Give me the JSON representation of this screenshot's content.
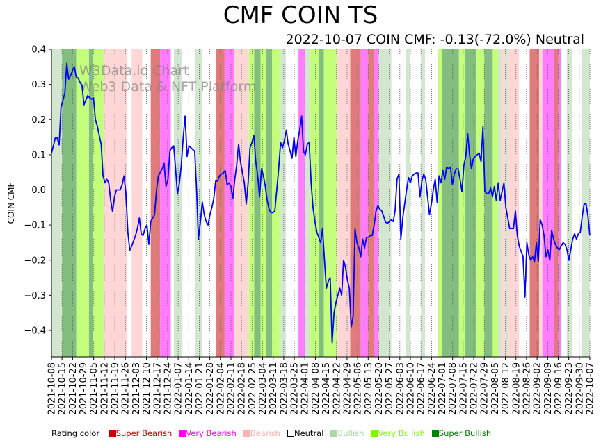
{
  "chart_data": {
    "type": "line",
    "title": "CMF COIN TS",
    "subtitle": "2022-10-07 COIN CMF: -0.13(-72.0%) Neutral",
    "ylabel": "COIN CMF",
    "xlabel": "",
    "ylim": [
      -0.475,
      0.4
    ],
    "yticks": [
      -0.4,
      -0.3,
      -0.2,
      -0.1,
      0.0,
      0.1,
      0.2,
      0.3,
      0.4
    ],
    "ytick_labels": [
      "−0.4",
      "−0.3",
      "−0.2",
      "−0.1",
      "0.0",
      "0.1",
      "0.2",
      "0.3",
      "0.4"
    ],
    "watermark": [
      "W3Data.io Chart",
      "Web3 Data & NFT Platform"
    ],
    "xticks": [
      "2021-10-08",
      "2021-10-15",
      "2021-10-22",
      "2021-10-29",
      "2021-11-05",
      "2021-11-12",
      "2021-11-19",
      "2021-11-26",
      "2021-12-03",
      "2021-12-10",
      "2021-12-17",
      "2021-12-24",
      "2022-01-07",
      "2022-01-14",
      "2022-01-21",
      "2022-01-28",
      "2022-02-04",
      "2022-02-11",
      "2022-02-18",
      "2022-02-25",
      "2022-03-04",
      "2022-03-11",
      "2022-03-18",
      "2022-03-25",
      "2022-04-01",
      "2022-04-08",
      "2022-04-15",
      "2022-04-22",
      "2022-04-29",
      "2022-05-06",
      "2022-05-13",
      "2022-05-20",
      "2022-05-27",
      "2022-06-03",
      "2022-06-10",
      "2022-06-17",
      "2022-06-24",
      "2022-07-01",
      "2022-07-08",
      "2022-07-15",
      "2022-07-22",
      "2022-07-29",
      "2022-08-05",
      "2022-08-12",
      "2022-08-19",
      "2022-08-26",
      "2022-09-02",
      "2022-09-09",
      "2022-09-16",
      "2022-09-23",
      "2022-09-30",
      "2022-10-07"
    ],
    "series": [
      {
        "name": "COIN CMF",
        "color": "#0000ff",
        "values": [
          0.105,
          0.125,
          0.148,
          0.148,
          0.128,
          0.235,
          0.255,
          0.275,
          0.36,
          0.315,
          0.325,
          0.34,
          0.35,
          0.32,
          0.318,
          0.305,
          0.298,
          0.242,
          0.255,
          0.268,
          0.262,
          0.258,
          0.262,
          0.2,
          0.182,
          0.155,
          0.13,
          0.04,
          0.02,
          0.03,
          0.02,
          -0.03,
          -0.062,
          -0.02,
          0.0,
          0.0,
          0.0,
          0.015,
          0.04,
          -0.01,
          -0.12,
          -0.172,
          -0.16,
          -0.145,
          -0.13,
          -0.11,
          -0.08,
          -0.125,
          -0.13,
          -0.11,
          -0.1,
          -0.155,
          -0.09,
          -0.08,
          -0.07,
          0.0,
          0.04,
          0.05,
          0.06,
          0.075,
          0.01,
          0.03,
          0.11,
          0.12,
          0.125,
          0.06,
          -0.012,
          0.02,
          0.07,
          0.15,
          0.21,
          0.095,
          0.125,
          0.12,
          0.115,
          0.11,
          0.0,
          -0.14,
          -0.09,
          -0.035,
          -0.07,
          -0.09,
          -0.1,
          -0.07,
          -0.05,
          -0.025,
          0.025,
          0.025,
          0.04,
          0.045,
          0.048,
          0.055,
          0.015,
          0.02,
          0.01,
          -0.025,
          0.03,
          0.07,
          0.13,
          0.08,
          0.05,
          0.02,
          -0.04,
          0.02,
          0.12,
          0.135,
          0.155,
          0.08,
          0.04,
          -0.02,
          0.06,
          0.04,
          0.01,
          -0.03,
          -0.055,
          -0.065,
          -0.065,
          -0.06,
          0.0,
          0.06,
          0.135,
          0.12,
          0.14,
          0.17,
          0.13,
          0.11,
          0.09,
          0.15,
          0.095,
          0.14,
          0.17,
          0.21,
          0.11,
          0.1,
          0.13,
          0.135,
          0.02,
          -0.05,
          -0.09,
          -0.12,
          -0.135,
          -0.15,
          -0.11,
          -0.2,
          -0.28,
          -0.26,
          -0.25,
          -0.435,
          -0.35,
          -0.32,
          -0.3,
          -0.28,
          -0.3,
          -0.2,
          -0.22,
          -0.255,
          -0.28,
          -0.39,
          -0.36,
          -0.11,
          -0.15,
          -0.165,
          -0.19,
          -0.14,
          -0.165,
          -0.135,
          -0.135,
          -0.13,
          -0.13,
          -0.1,
          -0.06,
          -0.045,
          -0.055,
          -0.06,
          -0.075,
          -0.092,
          -0.095,
          -0.09,
          -0.085,
          -0.09,
          -0.06,
          0.03,
          0.045,
          -0.14,
          -0.08,
          -0.04,
          0.0,
          0.035,
          0.02,
          0.04,
          0.045,
          0.048,
          0.048,
          -0.02,
          0.025,
          0.045,
          0.03,
          -0.02,
          -0.07,
          -0.04,
          0.0,
          0.03,
          -0.035,
          0.04,
          0.02,
          0.055,
          0.03,
          0.065,
          0.06,
          0.065,
          0.015,
          0.045,
          0.06,
          0.06,
          0.03,
          -0.005,
          0.07,
          0.095,
          0.16,
          0.1,
          0.06,
          0.09,
          0.095,
          0.1,
          0.105,
          0.08,
          0.18,
          -0.005,
          -0.01,
          -0.01,
          0.005,
          -0.02,
          0.01,
          -0.03,
          0.02,
          -0.03,
          -0.005,
          0.02,
          -0.05,
          -0.08,
          -0.11,
          -0.11,
          -0.11,
          -0.06,
          -0.13,
          -0.16,
          -0.175,
          -0.19,
          -0.305,
          -0.15,
          -0.185,
          -0.2,
          -0.19,
          -0.205,
          -0.15,
          -0.205,
          -0.085,
          -0.1,
          -0.13,
          -0.19,
          -0.17,
          -0.2,
          -0.115,
          -0.14,
          -0.155,
          -0.165,
          -0.17,
          -0.16,
          -0.15,
          -0.155,
          -0.17,
          -0.2,
          -0.17,
          -0.14,
          -0.125,
          -0.14,
          -0.125,
          -0.12,
          -0.075,
          -0.04,
          -0.04,
          -0.075,
          -0.13
        ]
      }
    ],
    "rating_bands": [
      {
        "rating": "Bullish",
        "from": 0.0,
        "to": 1.0
      },
      {
        "rating": "Super Bullish",
        "from": 1.0,
        "to": 2.35
      },
      {
        "rating": "Very Bullish",
        "from": 2.35,
        "to": 3.55
      },
      {
        "rating": "Super Bullish",
        "from": 3.55,
        "to": 3.9
      },
      {
        "rating": "Very Bullish",
        "from": 3.9,
        "to": 5.0
      },
      {
        "rating": "Bearish",
        "from": 5.0,
        "to": 7.2
      },
      {
        "rating": "Neutral",
        "from": 7.2,
        "to": 7.6
      },
      {
        "rating": "Bearish",
        "from": 7.6,
        "to": 8.6
      },
      {
        "rating": "Neutral",
        "from": 8.6,
        "to": 9.4
      },
      {
        "rating": "Super Bearish",
        "from": 9.4,
        "to": 10.3
      },
      {
        "rating": "Very Bearish",
        "from": 10.3,
        "to": 11.3
      },
      {
        "rating": "Neutral",
        "from": 11.3,
        "to": 11.6
      },
      {
        "rating": "Bullish",
        "from": 11.6,
        "to": 12.4
      },
      {
        "rating": "Neutral",
        "from": 12.4,
        "to": 13.6
      },
      {
        "rating": "Bullish",
        "from": 13.6,
        "to": 14.3
      },
      {
        "rating": "Neutral",
        "from": 14.3,
        "to": 15.6
      },
      {
        "rating": "Super Bearish",
        "from": 15.6,
        "to": 16.4
      },
      {
        "rating": "Very Bearish",
        "from": 16.4,
        "to": 17.3
      },
      {
        "rating": "Bearish",
        "from": 17.3,
        "to": 18.7
      },
      {
        "rating": "Very Bullish",
        "from": 18.7,
        "to": 19.2
      },
      {
        "rating": "Super Bullish",
        "from": 19.2,
        "to": 19.8
      },
      {
        "rating": "Very Bullish",
        "from": 19.8,
        "to": 20.3
      },
      {
        "rating": "Super Bullish",
        "from": 20.3,
        "to": 20.9
      },
      {
        "rating": "Very Bullish",
        "from": 20.9,
        "to": 21.7
      },
      {
        "rating": "Bullish",
        "from": 21.7,
        "to": 22.2
      },
      {
        "rating": "Neutral",
        "from": 22.2,
        "to": 23.4
      },
      {
        "rating": "Very Bearish",
        "from": 23.4,
        "to": 24.0
      },
      {
        "rating": "Bullish",
        "from": 24.0,
        "to": 24.5
      },
      {
        "rating": "Very Bullish",
        "from": 24.5,
        "to": 25.3
      },
      {
        "rating": "Super Bullish",
        "from": 25.3,
        "to": 25.8
      },
      {
        "rating": "Very Bullish",
        "from": 25.8,
        "to": 27.1
      },
      {
        "rating": "Bearish",
        "from": 27.1,
        "to": 28.3
      },
      {
        "rating": "Super Bearish",
        "from": 28.3,
        "to": 29.3
      },
      {
        "rating": "Very Bearish",
        "from": 29.3,
        "to": 30.0
      },
      {
        "rating": "Super Bearish",
        "from": 30.0,
        "to": 30.6
      },
      {
        "rating": "Very Bearish",
        "from": 30.6,
        "to": 31.0
      },
      {
        "rating": "Bullish",
        "from": 31.0,
        "to": 32.2
      },
      {
        "rating": "Neutral",
        "from": 32.2,
        "to": 33.6
      },
      {
        "rating": "Bullish",
        "from": 33.6,
        "to": 34.0
      },
      {
        "rating": "Neutral",
        "from": 34.0,
        "to": 35.0
      },
      {
        "rating": "Bullish",
        "from": 35.0,
        "to": 35.4
      },
      {
        "rating": "Neutral",
        "from": 35.4,
        "to": 36.6
      },
      {
        "rating": "Very Bullish",
        "from": 36.6,
        "to": 37.0
      },
      {
        "rating": "Super Bullish",
        "from": 37.0,
        "to": 38.6
      },
      {
        "rating": "Very Bullish",
        "from": 38.6,
        "to": 39.2
      },
      {
        "rating": "Super Bullish",
        "from": 39.2,
        "to": 40.2
      },
      {
        "rating": "Very Bullish",
        "from": 40.2,
        "to": 41.0
      },
      {
        "rating": "Super Bullish",
        "from": 41.0,
        "to": 41.8
      },
      {
        "rating": "Very Bullish",
        "from": 41.8,
        "to": 42.3
      },
      {
        "rating": "Bullish",
        "from": 42.3,
        "to": 42.6
      },
      {
        "rating": "Bearish",
        "from": 42.6,
        "to": 43.0
      },
      {
        "rating": "Bullish",
        "from": 43.0,
        "to": 43.3
      },
      {
        "rating": "Bearish",
        "from": 43.3,
        "to": 44.3
      },
      {
        "rating": "Neutral",
        "from": 44.3,
        "to": 45.3
      },
      {
        "rating": "Super Bearish",
        "from": 45.3,
        "to": 46.2
      },
      {
        "rating": "Bearish",
        "from": 46.2,
        "to": 46.5
      },
      {
        "rating": "Very Bearish",
        "from": 46.5,
        "to": 47.6
      },
      {
        "rating": "Super Bearish",
        "from": 47.6,
        "to": 48.0
      },
      {
        "rating": "Very Bearish",
        "from": 48.0,
        "to": 48.3
      },
      {
        "rating": "Neutral",
        "from": 48.3,
        "to": 48.8
      },
      {
        "rating": "Bullish",
        "from": 48.8,
        "to": 49.3
      },
      {
        "rating": "Neutral",
        "from": 49.3,
        "to": 50.2
      },
      {
        "rating": "Bullish",
        "from": 50.2,
        "to": 51.0
      }
    ],
    "rating_colors": {
      "Super Bearish": "#e07b7b",
      "Very Bearish": "#ff7cff",
      "Bearish": "#ffd6d6",
      "Neutral": "#ffffff",
      "Bullish": "#d2e6d0",
      "Very Bullish": "#c3ff7a",
      "Super Bullish": "#83bd80"
    }
  },
  "legend": {
    "title": "Rating color",
    "items": [
      {
        "label": "Super Bearish",
        "color": "#cc0000",
        "text_color": "#cc0000"
      },
      {
        "label": "Very Bearish",
        "color": "#ff00ff",
        "text_color": "#ff00ff"
      },
      {
        "label": "Bearish",
        "color": "#ffb0b0",
        "text_color": "#ffb0b0"
      },
      {
        "label": "Neutral",
        "color": "#ffffff",
        "text_color": "#000000"
      },
      {
        "label": "Bullish",
        "color": "#a8d8a8",
        "text_color": "#a8d8a8"
      },
      {
        "label": "Very Bullish",
        "color": "#7cfc00",
        "text_color": "#7cfc00"
      },
      {
        "label": "Super Bullish",
        "color": "#008000",
        "text_color": "#008000"
      }
    ]
  }
}
